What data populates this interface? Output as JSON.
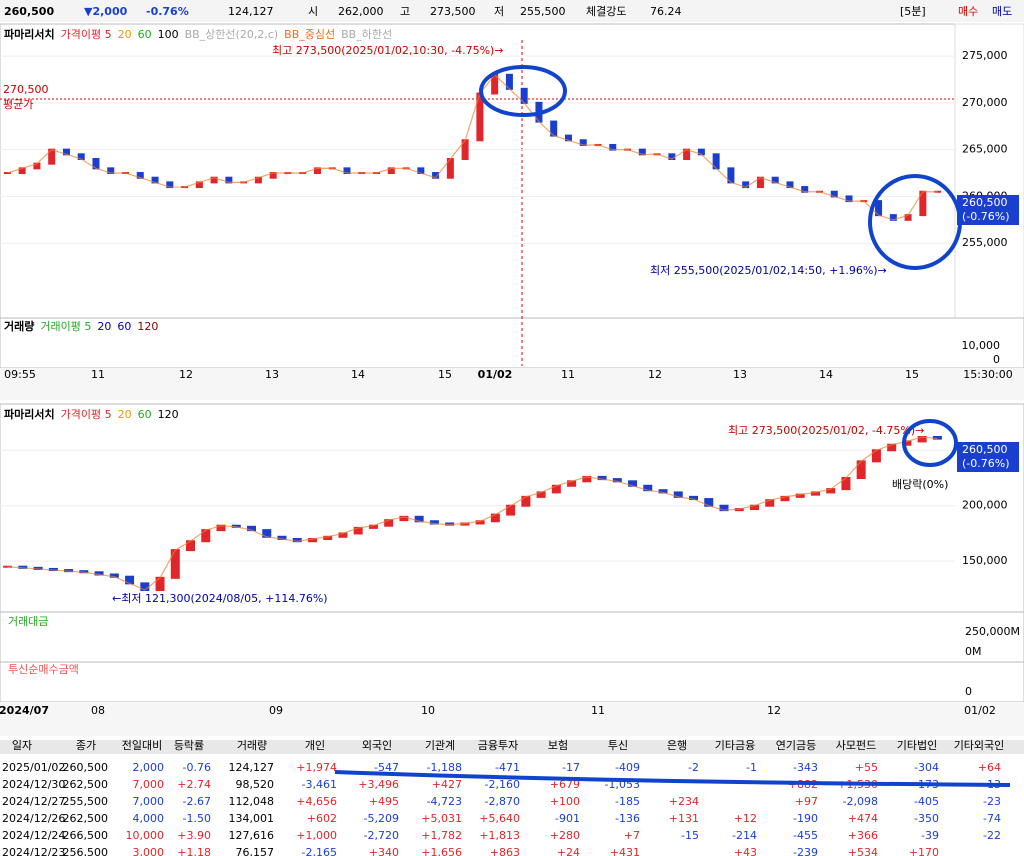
{
  "header": {
    "price": "260,500",
    "change": "▼2,000",
    "rate": "-0.76%",
    "volume": "124,127",
    "open_label": "시",
    "open": "262,000",
    "high_label": "고",
    "high": "273,500",
    "low_label": "저",
    "low": "255,500",
    "strength_label": "체결강도",
    "strength": "76.24",
    "period": "[5분]",
    "buy": "매수",
    "sell": "매도"
  },
  "intraday_chart": {
    "legend": [
      "파마리서치",
      "가격이평 5",
      "20",
      "60",
      "100",
      "BB_상한선(20,2,c)",
      "BB_중심선",
      "BB_하한선"
    ],
    "ylim": [
      250000,
      278000
    ],
    "yticks": [
      {
        "value": 275000,
        "label": "275,000"
      },
      {
        "value": 270000,
        "label": "270,000"
      },
      {
        "value": 265000,
        "label": "265,000"
      },
      {
        "value": 260000,
        "label": "260,000"
      },
      {
        "value": 255000,
        "label": "255,000"
      }
    ],
    "closes": [
      262500,
      263000,
      263500,
      265000,
      264500,
      264000,
      263000,
      262500,
      262500,
      262000,
      261500,
      261000,
      261000,
      261500,
      262000,
      261500,
      261500,
      262000,
      262500,
      262500,
      262500,
      263000,
      263000,
      262500,
      262500,
      262500,
      263000,
      263000,
      262500,
      262000,
      264000,
      266000,
      271000,
      273000,
      271500,
      270000,
      268000,
      266500,
      266000,
      265500,
      265500,
      265000,
      265000,
      264500,
      264500,
      264000,
      265000,
      264500,
      263000,
      261500,
      261000,
      262000,
      261500,
      261000,
      260500,
      260500,
      260000,
      259500,
      259500,
      258000,
      257500,
      258000,
      260500,
      260500
    ],
    "high_note": "최고 273,500(2025/01/02,10:30, -4.75%)→",
    "avg_value": "270,500",
    "avg_label": "평균가",
    "low_note": "최저 255,500(2025/01/02,14:50, +1.96%)→",
    "last_price": "260,500",
    "last_rate": "(-0.76%)",
    "volume_legend": [
      "거래량",
      "거래이평 5",
      "20",
      "60",
      "120"
    ],
    "volume_ticks": [
      "10,000",
      "0"
    ],
    "x_labels": [
      "09:55",
      "11",
      "12",
      "13",
      "14",
      "15",
      "01/02",
      "11",
      "12",
      "13",
      "14",
      "15",
      "15:30:00"
    ]
  },
  "daily_chart": {
    "legend": [
      "파마리서치",
      "가격이평 5",
      "20",
      "60",
      "120"
    ],
    "ylim": [
      115000,
      280000
    ],
    "yticks": [
      {
        "value": 250000,
        "label": "250,000"
      },
      {
        "value": 200000,
        "label": "200,000"
      },
      {
        "value": 150000,
        "label": "150,000"
      }
    ],
    "closes": [
      145000,
      144000,
      143000,
      142000,
      141000,
      140000,
      138000,
      136000,
      130000,
      124000,
      135000,
      160000,
      168000,
      178000,
      182000,
      181000,
      178000,
      172000,
      170000,
      168000,
      170000,
      172000,
      175000,
      180000,
      182000,
      187000,
      190000,
      186000,
      184000,
      183000,
      184000,
      186000,
      192000,
      200000,
      208000,
      212000,
      218000,
      222000,
      226000,
      224000,
      222000,
      218000,
      214000,
      212000,
      208000,
      206000,
      200000,
      196000,
      197000,
      200000,
      205000,
      208000,
      210000,
      212000,
      215000,
      225000,
      240000,
      250000,
      255000,
      258000,
      262000,
      260500
    ],
    "high_note": "최고 273,500(2025/01/02, -4.75%)→",
    "low_note": "←최저 121,300(2024/08/05, +114.76%)",
    "dividend_note": "배당락(0%)",
    "last_price": "260,500",
    "last_rate": "(-0.76%)",
    "amount_label": "거래대금",
    "amount_ticks": [
      "250,000M",
      "0M"
    ],
    "trust_label": "투신순매수금액",
    "trust_ticks": [
      "0"
    ],
    "x_labels": [
      "2024/07",
      "08",
      "09",
      "10",
      "11",
      "12",
      "01/02"
    ]
  },
  "table": {
    "headers": [
      "일자",
      "종가",
      "전일대비",
      "등락률",
      "거래량",
      "개인",
      "외국인",
      "기관계",
      "금융투자",
      "보험",
      "투신",
      "은행",
      "기타금융",
      "연기금등",
      "사모펀드",
      "기타법인",
      "기타외국인"
    ],
    "rows": [
      [
        "2025/01/02",
        "260,500",
        "2,000",
        "-0.76",
        "124,127",
        "+1,974",
        "-547",
        "-1,188",
        "-471",
        "-17",
        "-409",
        "-2",
        "-1",
        "-343",
        "+55",
        "-304",
        "+64"
      ],
      [
        "2024/12/30",
        "262,500",
        "7,000",
        "+2.74",
        "98,520",
        "-3,461",
        "+3,496",
        "+427",
        "-2,160",
        "+679",
        "-1,053",
        null,
        null,
        "+882",
        "+1,530",
        "-173",
        "-13"
      ],
      [
        "2024/12/27",
        "255,500",
        "7,000",
        "-2.67",
        "112,048",
        "+4,656",
        "+495",
        "-4,723",
        "-2,870",
        "+100",
        "-185",
        "+234",
        null,
        "+97",
        "-2,098",
        "-405",
        "-23"
      ],
      [
        "2024/12/26",
        "262,500",
        "4,000",
        "-1.50",
        "134,001",
        "+602",
        "-5,209",
        "+5,031",
        "+5,640",
        "-901",
        "-136",
        "+131",
        "+12",
        "-190",
        "+474",
        "-350",
        "-74"
      ],
      [
        "2024/12/24",
        "266,500",
        "10,000",
        "+3.90",
        "127,616",
        "+1,000",
        "-2,720",
        "+1,782",
        "+1,813",
        "+280",
        "+7",
        "-15",
        "-214",
        "-455",
        "+366",
        "-39",
        "-22"
      ],
      [
        "2024/12/23",
        "256,500",
        "3,000",
        "+1.18",
        "76,157",
        "-2,165",
        "+340",
        "+1,656",
        "+863",
        "+24",
        "+431",
        null,
        "+43",
        "-239",
        "+534",
        "+170",
        null
      ]
    ]
  }
}
